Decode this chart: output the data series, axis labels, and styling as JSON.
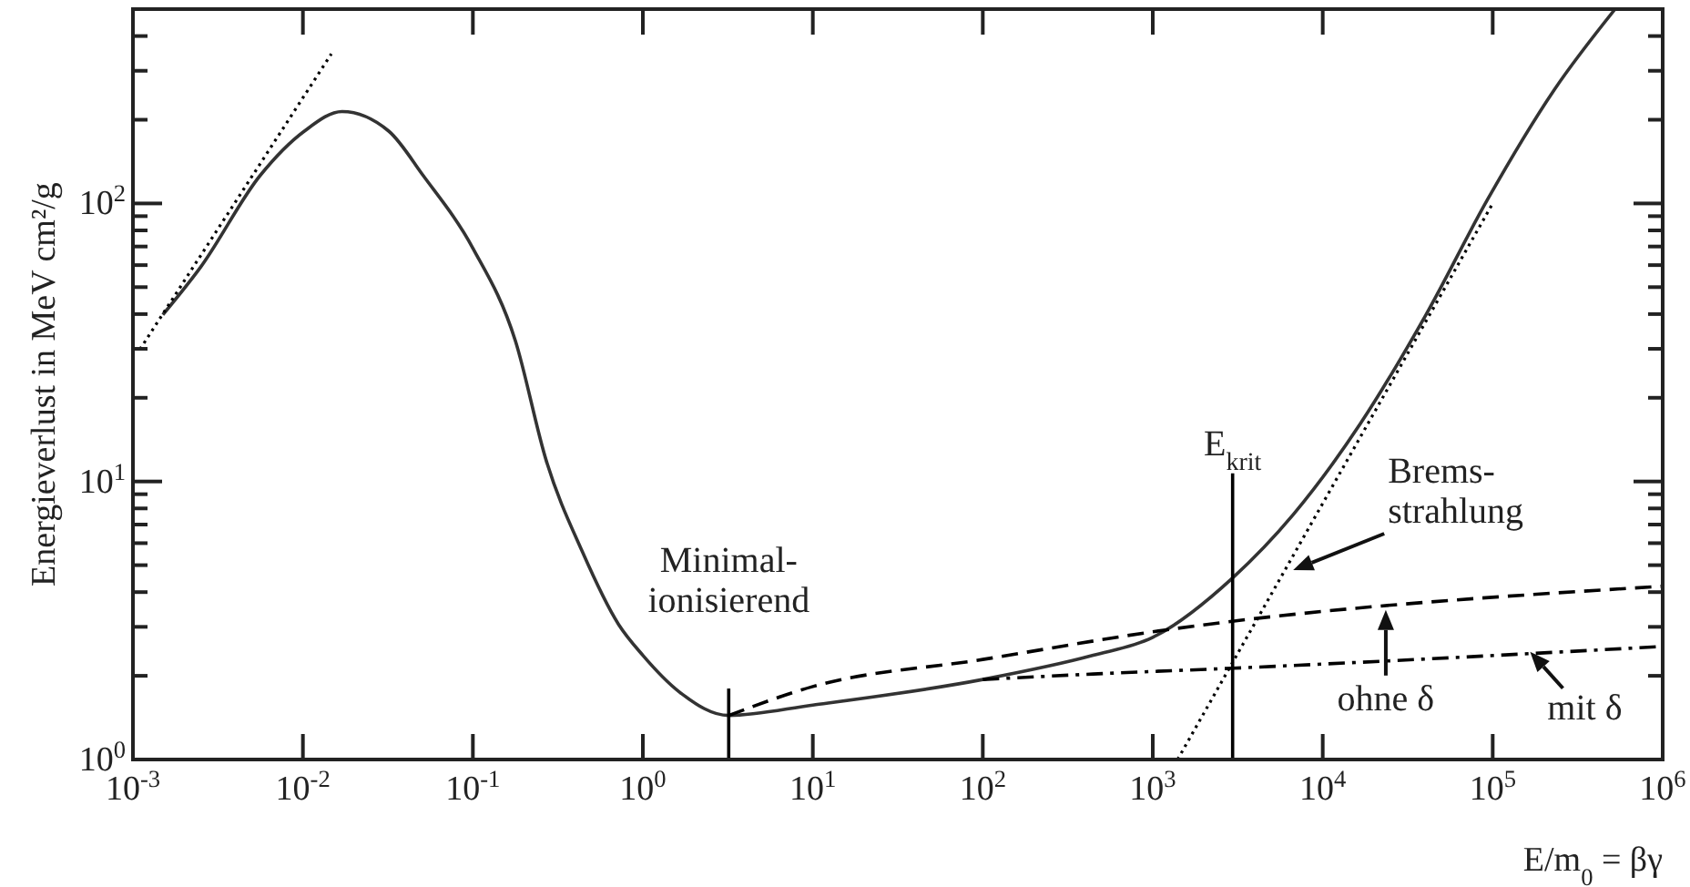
{
  "chart_data": {
    "type": "line",
    "xlabel": "E/m$_{0}$ = βγ",
    "ylabel": "Energieverlust in MeV cm²/g",
    "log": "xy",
    "grid": false,
    "xlim": [
      0.001,
      1000000
    ],
    "ylim": [
      1,
      500
    ],
    "xticks": [
      {
        "value": 0.001,
        "label": "10$^{-3}$"
      },
      {
        "value": 0.01,
        "label": "10$^{-2}$"
      },
      {
        "value": 0.1,
        "label": "10$^{-1}$"
      },
      {
        "value": 1,
        "label": "10$^{0}$"
      },
      {
        "value": 10,
        "label": "10$^{1}$"
      },
      {
        "value": 100,
        "label": "10$^{2}$"
      },
      {
        "value": 1000,
        "label": "10$^{3}$"
      },
      {
        "value": 10000,
        "label": "10$^{4}$"
      },
      {
        "value": 100000,
        "label": "10$^{5}$"
      },
      {
        "value": 1000000,
        "label": "10$^{6}$"
      }
    ],
    "yticks": [
      {
        "value": 1,
        "label": "10$^{0}$"
      },
      {
        "value": 2,
        "label": null
      },
      {
        "value": 3,
        "label": null
      },
      {
        "value": 4,
        "label": null
      },
      {
        "value": 5,
        "label": null
      },
      {
        "value": 6,
        "label": null
      },
      {
        "value": 7,
        "label": null
      },
      {
        "value": 8,
        "label": null
      },
      {
        "value": 9,
        "label": null
      },
      {
        "value": 10,
        "label": "10$^{1}$"
      },
      {
        "value": 20,
        "label": null
      },
      {
        "value": 30,
        "label": null
      },
      {
        "value": 40,
        "label": null
      },
      {
        "value": 50,
        "label": null
      },
      {
        "value": 60,
        "label": null
      },
      {
        "value": 70,
        "label": null
      },
      {
        "value": 80,
        "label": null
      },
      {
        "value": 90,
        "label": null
      },
      {
        "value": 100,
        "label": "10$^{2}$"
      },
      {
        "value": 200,
        "label": null
      },
      {
        "value": 300,
        "label": null
      },
      {
        "value": 400,
        "label": null
      }
    ],
    "series": [
      {
        "color": "#333333",
        "line_style": "solid",
        "x": [
          0.0015,
          0.0025,
          0.0056,
          0.0102,
          0.017,
          0.032,
          0.051,
          0.1,
          0.178,
          0.27,
          0.44,
          0.72,
          1.0,
          1.64,
          3.2,
          10,
          100,
          446,
          1000,
          2950,
          6700,
          16600,
          40500,
          93000,
          230000,
          525000
        ],
        "values": [
          39.8,
          59,
          126,
          182,
          214,
          182,
          126,
          69,
          32,
          11.9,
          5.6,
          3.06,
          2.37,
          1.75,
          1.44,
          1.57,
          1.94,
          2.37,
          2.75,
          4.5,
          7.6,
          16.1,
          39.8,
          103,
          256,
          500
        ]
      },
      {
        "color": "#000000",
        "line_style": "dashed",
        "x": [
          3.2,
          10,
          100,
          1000,
          1000000
        ],
        "values": [
          1.44,
          1.83,
          2.29,
          2.88,
          4.2
        ]
      },
      {
        "color": "#000000",
        "line_style": "dashdot",
        "x": [
          100,
          446,
          2950,
          1000000
        ],
        "values": [
          1.94,
          2.03,
          2.13,
          2.55
        ]
      },
      {
        "color": "#000000",
        "line_style": "dotted",
        "x": [
          0.0011,
          0.0147
        ],
        "values": [
          29.9,
          345
        ]
      },
      {
        "color": "#000000",
        "line_style": "dotted",
        "x": [
          1400,
          100000
        ],
        "values": [
          1,
          100
        ]
      },
      {
        "color": "#000000",
        "line_style": "solid",
        "x": [
          3.2,
          3.2
        ],
        "values": [
          1,
          1.8
        ]
      },
      {
        "color": "#000000",
        "line_style": "solid",
        "x": [
          2950,
          2950
        ],
        "values": [
          1,
          10.7
        ]
      }
    ],
    "annotations": [
      {
        "text": "Minimal-\nionisierend",
        "x": 3.2,
        "y": 1.8
      },
      {
        "text": "E$_{krit}$",
        "x": 2950,
        "y": 10.7
      },
      {
        "text": "Brems-\nstrahlung",
        "x": 6700,
        "y": 4.8
      },
      {
        "text": "ohne δ",
        "x": 23500,
        "y": 3.45
      },
      {
        "text": "mit δ",
        "x": 166000,
        "y": 2.44
      }
    ]
  }
}
